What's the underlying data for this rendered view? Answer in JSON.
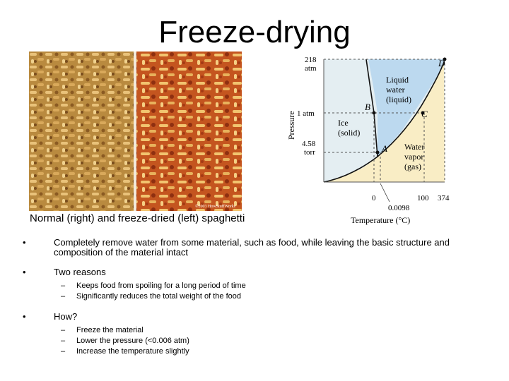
{
  "slide": {
    "title": "Freeze-drying"
  },
  "photo": {
    "caption": "Normal (right) and freeze-dried (left) spaghetti",
    "credit": "©2003 HowStuffWorks"
  },
  "phase_diagram": {
    "y_axis_label": "Pressure",
    "x_axis_label": "Temperature (°C)",
    "y_ticks": [
      "218 atm",
      "1 atm",
      "4.58 torr"
    ],
    "x_ticks": [
      "0",
      "100",
      "374"
    ],
    "triple_point_temp": "0.0098",
    "regions": {
      "liquid": [
        "Liquid",
        "water",
        "(liquid)"
      ],
      "solid": [
        "Ice",
        "(solid)"
      ],
      "vapor": [
        "Water",
        "vapor",
        "(gas)"
      ]
    },
    "points": [
      "A",
      "B",
      "C",
      "D"
    ],
    "colors": {
      "liquid": "#bcd9ef",
      "solid": "#e4eef2",
      "vapor": "#f9edc5"
    }
  },
  "bullets": [
    {
      "text": "Completely remove water from some material, such as food, while leaving the basic structure and composition of the material intact",
      "subs": []
    },
    {
      "text": "Two reasons",
      "subs": [
        "Keeps food from spoiling for a long period of time",
        "Significantly reduces the total weight of the food"
      ]
    },
    {
      "text": "How?",
      "subs": [
        "Freeze the material",
        "Lower the pressure (<0.006 atm)",
        "Increase the temperature slightly"
      ]
    }
  ]
}
